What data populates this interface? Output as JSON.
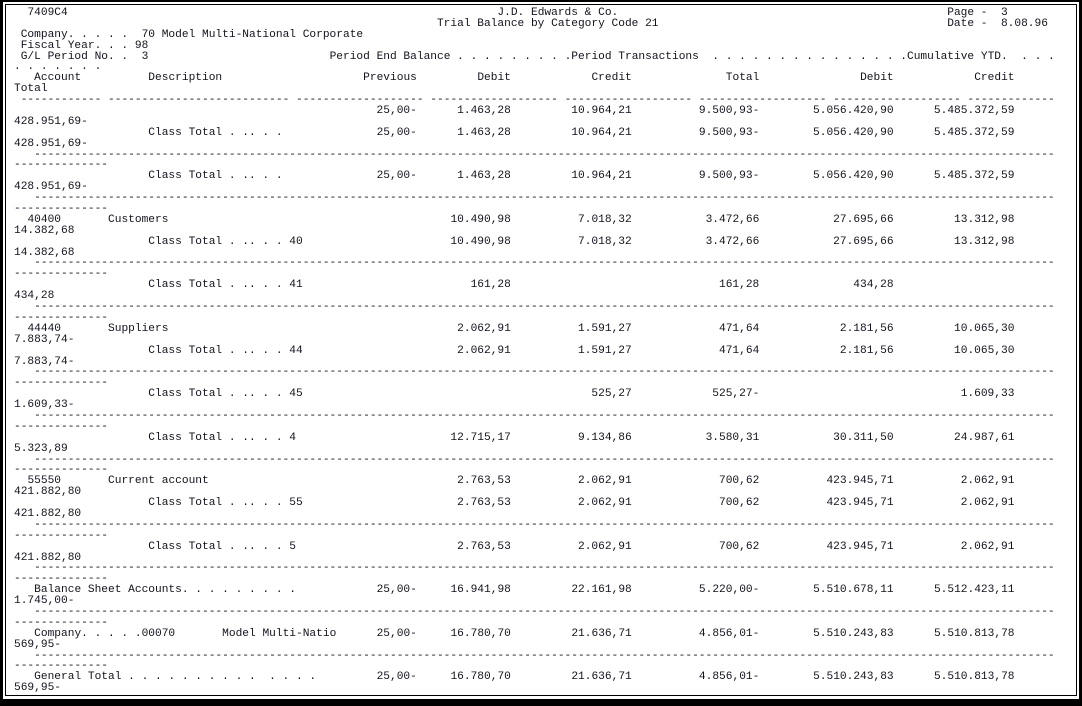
{
  "report": {
    "id": "7409C4",
    "title_company": "J.D. Edwards & Co.",
    "title_report": "Trial Balance by Category Code 21",
    "page": {
      "label": "Page -",
      "value": "3"
    },
    "date": {
      "label": "Date -",
      "value": "8.08.96"
    },
    "company_line": {
      "label": "Company. . . . .",
      "value": "70 Model Multi-National Corporate"
    },
    "fiscal_line": {
      "label": "Fiscal Year. . .",
      "value": "98"
    },
    "period_line": {
      "label": "G/L Period No. .",
      "value": "3"
    },
    "groups": {
      "period_end": "Period End Balance",
      "period_tx": "Period Transactions",
      "cumulative": "Cumulative YTD.",
      "wrap_dots": ". . . . . . ."
    },
    "columns": {
      "account": "Account",
      "description": "Description",
      "previous": "Previous",
      "debit": "Debit",
      "credit": "Credit",
      "total": "Total",
      "ytd_debit": "Debit",
      "ytd_credit": "Credit",
      "wrap_total": "Total"
    },
    "class_total_label": "Class Total . .. . .",
    "rows": [
      {
        "type": "detail",
        "account": "",
        "description": "",
        "previous": "25,00-",
        "debit": "1.463,28",
        "credit": "10.964,21",
        "total": "9.500,93-",
        "ytd_debit": "5.056.420,90",
        "ytd_credit": "5.485.372,59",
        "cum_total": "428.951,69-"
      },
      {
        "type": "class_total",
        "code": "",
        "previous": "25,00-",
        "debit": "1.463,28",
        "credit": "10.964,21",
        "total": "9.500,93-",
        "ytd_debit": "5.056.420,90",
        "ytd_credit": "5.485.372,59",
        "cum_total": "428.951,69-"
      },
      {
        "type": "separator"
      },
      {
        "type": "class_total",
        "code": "",
        "previous": "25,00-",
        "debit": "1.463,28",
        "credit": "10.964,21",
        "total": "9.500,93-",
        "ytd_debit": "5.056.420,90",
        "ytd_credit": "5.485.372,59",
        "cum_total": "428.951,69-"
      },
      {
        "type": "separator"
      },
      {
        "type": "detail",
        "account": "40400",
        "description": "Customers",
        "previous": "",
        "debit": "10.490,98",
        "credit": "7.018,32",
        "total": "3.472,66",
        "ytd_debit": "27.695,66",
        "ytd_credit": "13.312,98",
        "cum_total": "14.382,68"
      },
      {
        "type": "class_total",
        "code": "40",
        "previous": "",
        "debit": "10.490,98",
        "credit": "7.018,32",
        "total": "3.472,66",
        "ytd_debit": "27.695,66",
        "ytd_credit": "13.312,98",
        "cum_total": "14.382,68"
      },
      {
        "type": "separator"
      },
      {
        "type": "class_total",
        "code": "41",
        "previous": "",
        "debit": "161,28",
        "credit": "",
        "total": "161,28",
        "ytd_debit": "434,28",
        "ytd_credit": "",
        "cum_total": "434,28"
      },
      {
        "type": "separator"
      },
      {
        "type": "detail",
        "account": "44440",
        "description": "Suppliers",
        "previous": "",
        "debit": "2.062,91",
        "credit": "1.591,27",
        "total": "471,64",
        "ytd_debit": "2.181,56",
        "ytd_credit": "10.065,30",
        "cum_total": "7.883,74-"
      },
      {
        "type": "class_total",
        "code": "44",
        "previous": "",
        "debit": "2.062,91",
        "credit": "1.591,27",
        "total": "471,64",
        "ytd_debit": "2.181,56",
        "ytd_credit": "10.065,30",
        "cum_total": "7.883,74-"
      },
      {
        "type": "separator"
      },
      {
        "type": "class_total",
        "code": "45",
        "previous": "",
        "debit": "",
        "credit": "525,27",
        "total": "525,27-",
        "ytd_debit": "",
        "ytd_credit": "1.609,33",
        "cum_total": "1.609,33-"
      },
      {
        "type": "separator"
      },
      {
        "type": "class_total",
        "code": "4",
        "previous": "",
        "debit": "12.715,17",
        "credit": "9.134,86",
        "total": "3.580,31",
        "ytd_debit": "30.311,50",
        "ytd_credit": "24.987,61",
        "cum_total": "5.323,89"
      },
      {
        "type": "separator"
      },
      {
        "type": "detail",
        "account": "55550",
        "description": "Current account",
        "previous": "",
        "debit": "2.763,53",
        "credit": "2.062,91",
        "total": "700,62",
        "ytd_debit": "423.945,71",
        "ytd_credit": "2.062,91",
        "cum_total": "421.882,80"
      },
      {
        "type": "class_total",
        "code": "55",
        "previous": "",
        "debit": "2.763,53",
        "credit": "2.062,91",
        "total": "700,62",
        "ytd_debit": "423.945,71",
        "ytd_credit": "2.062,91",
        "cum_total": "421.882,80"
      },
      {
        "type": "separator"
      },
      {
        "type": "class_total",
        "code": "5",
        "previous": "",
        "debit": "2.763,53",
        "credit": "2.062,91",
        "total": "700,62",
        "ytd_debit": "423.945,71",
        "ytd_credit": "2.062,91",
        "cum_total": "421.882,80"
      },
      {
        "type": "separator"
      },
      {
        "type": "summary",
        "label": "Balance Sheet Accounts. . . . . . . . .",
        "description": "",
        "previous": "25,00-",
        "debit": "16.941,98",
        "credit": "22.161,98",
        "total": "5.220,00-",
        "ytd_debit": "5.510.678,11",
        "ytd_credit": "5.512.423,11",
        "cum_total": "1.745,00-"
      },
      {
        "type": "separator"
      },
      {
        "type": "summary",
        "label": "Company. . . . .00070",
        "description": "Model Multi-Natio",
        "previous": "25,00-",
        "debit": "16.780,70",
        "credit": "21.636,71",
        "total": "4.856,01-",
        "ytd_debit": "5.510.243,83",
        "ytd_credit": "5.510.813,78",
        "cum_total": "569,95-"
      },
      {
        "type": "separator"
      },
      {
        "type": "summary",
        "label": "General Total . . . . . . . . . .  . . . .",
        "description": "",
        "previous": "25,00-",
        "debit": "16.780,70",
        "credit": "21.636,71",
        "total": "4.856,01-",
        "ytd_debit": "5.510.243,83",
        "ytd_credit": "5.510.813,78",
        "cum_total": "569,95-"
      }
    ]
  }
}
